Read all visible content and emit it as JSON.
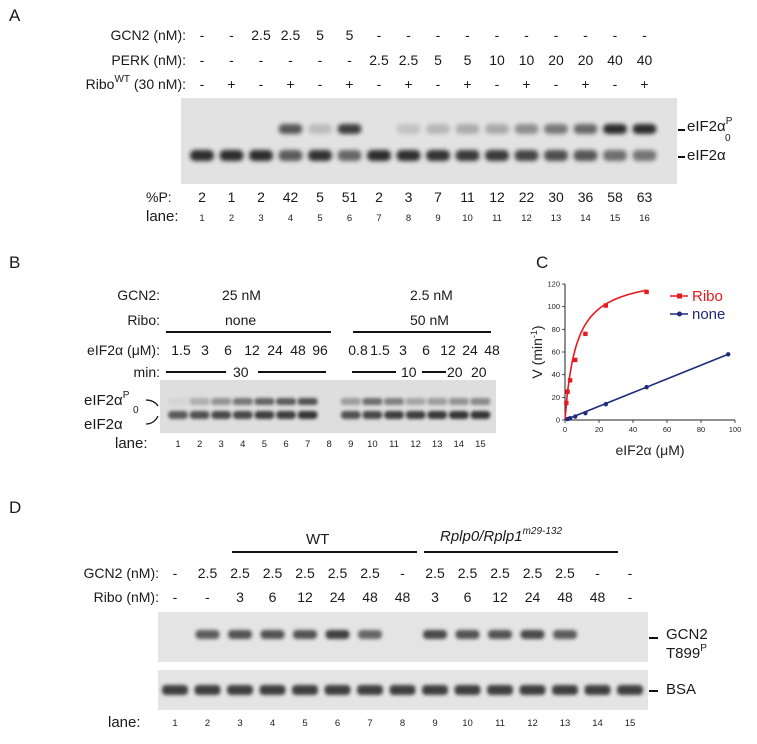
{
  "panelA": {
    "letter": "A",
    "gcn2_label": "GCN2 (nM):",
    "perk_label": "PERK (nM):",
    "ribo_label_main": "Ribo",
    "ribo_label_sup": "WT",
    "ribo_label_tail": " (30 nM):",
    "gcn2": [
      "-",
      "-",
      "2.5",
      "2.5",
      "5",
      "5",
      "-",
      "-",
      "-",
      "-",
      "-",
      "-",
      "-",
      "-",
      "-",
      "-"
    ],
    "perk": [
      "-",
      "-",
      "-",
      "-",
      "-",
      "-",
      "2.5",
      "2.5",
      "5",
      "5",
      "10",
      "10",
      "20",
      "20",
      "40",
      "40"
    ],
    "ribo": [
      "-",
      "+",
      "-",
      "+",
      "-",
      "+",
      "-",
      "+",
      "-",
      "+",
      "-",
      "+",
      "-",
      "+",
      "-",
      "+"
    ],
    "pct_label": "%P:",
    "pct": [
      "2",
      "1",
      "2",
      "42",
      "5",
      "51",
      "2",
      "3",
      "7",
      "11",
      "12",
      "22",
      "30",
      "36",
      "58",
      "63"
    ],
    "lane_label": "lane:",
    "lanes": [
      "1",
      "2",
      "3",
      "4",
      "5",
      "6",
      "7",
      "8",
      "9",
      "10",
      "11",
      "12",
      "13",
      "14",
      "15",
      "16"
    ],
    "band_top_main": "eIF2α",
    "band_top_sup": "P",
    "band_zero": "0",
    "band_bottom": "eIF2α"
  },
  "panelB": {
    "letter": "B",
    "gcn2_label": "GCN2:",
    "ribo_label": "Ribo:",
    "eif_label": "eIF2α (μM):",
    "min_label": "min:",
    "lane_label": "lane:",
    "left_gcn2": "25 nM",
    "left_ribo": "none",
    "right_gcn2": "2.5 nM",
    "right_ribo": "50 nM",
    "eif_left": [
      "1.5",
      "3",
      "6",
      "12",
      "24",
      "48",
      "96"
    ],
    "eif_right": [
      "0.8",
      "1.5",
      "3",
      "6",
      "12",
      "24",
      "48"
    ],
    "min_left": "30",
    "min_right_a": "10",
    "min_right_b": "20",
    "min_right_c": "20",
    "lanes": [
      "1",
      "2",
      "3",
      "4",
      "5",
      "6",
      "7",
      "8",
      "9",
      "10",
      "11",
      "12",
      "13",
      "14",
      "15"
    ],
    "band_top_main": "eIF2α",
    "band_top_sup": "P",
    "band_zero": "0",
    "band_bottom": "eIF2α"
  },
  "panelC": {
    "letter": "C",
    "chart_data": {
      "type": "scatter",
      "xlabel": "eIF2α (μM)",
      "ylabel": "V (min⁻¹)",
      "ylabel_main": "V (min",
      "ylabel_sup": "-1",
      "ylabel_tail": ")",
      "xlim": [
        0,
        100
      ],
      "ylim": [
        0,
        120
      ],
      "xticks": [
        "0",
        "20",
        "40",
        "60",
        "80",
        "100"
      ],
      "yticks": [
        "0",
        "20",
        "40",
        "60",
        "80",
        "100",
        "120"
      ],
      "legend_position": "top-right",
      "series": [
        {
          "name": "Ribo",
          "color": "#e8191e",
          "fit": "hyperbolic",
          "x": [
            0.8,
            1.5,
            3,
            6,
            12,
            24,
            48
          ],
          "y": [
            15,
            25,
            35,
            53,
            76,
            101,
            113
          ]
        },
        {
          "name": "none",
          "color": "#1f2a7a",
          "fit": "linear",
          "x": [
            1.5,
            3,
            6,
            12,
            24,
            48,
            96
          ],
          "y": [
            0.8,
            1.6,
            3,
            6,
            14,
            29,
            58
          ]
        }
      ]
    }
  },
  "panelD": {
    "letter": "D",
    "wt_label": "WT",
    "mut_label_main": "Rplp0/Rplp1",
    "mut_label_sup": "m29-132",
    "gcn2_label": "GCN2 (nM):",
    "ribo_label": "Ribo (nM):",
    "lane_label": "lane:",
    "gcn2": [
      "-",
      "2.5",
      "2.5",
      "2.5",
      "2.5",
      "2.5",
      "2.5",
      "-",
      "2.5",
      "2.5",
      "2.5",
      "2.5",
      "2.5",
      "-",
      "-"
    ],
    "ribo": [
      "-",
      "-",
      "3",
      "6",
      "12",
      "24",
      "48",
      "48",
      "3",
      "6",
      "12",
      "24",
      "48",
      "48",
      "-"
    ],
    "lanes": [
      "1",
      "2",
      "3",
      "4",
      "5",
      "6",
      "7",
      "8",
      "9",
      "10",
      "11",
      "12",
      "13",
      "14",
      "15"
    ],
    "band_gcn2_line1": "GCN2",
    "band_gcn2_line2_main": "T899",
    "band_gcn2_line2_sup": "P",
    "band_bsa": "BSA"
  }
}
